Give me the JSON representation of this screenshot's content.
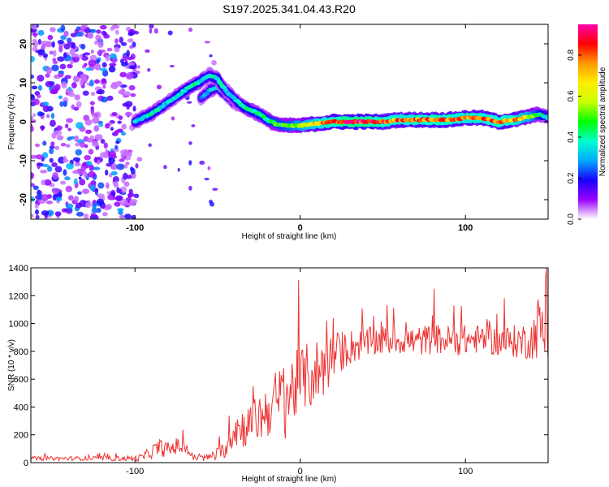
{
  "title": "S197.2025.341.04.43.R20",
  "chart_data": [
    {
      "type": "heatmap",
      "title": "S197.2025.341.04.43.R20",
      "xlabel": "Height of straight line (km)",
      "ylabel": "Frequency (Hz)",
      "xlim": [
        -163,
        150
      ],
      "ylim": [
        -25,
        25
      ],
      "x_ticks": [
        {
          "v": -100,
          "label": "-100"
        },
        {
          "v": 0,
          "label": "0"
        },
        {
          "v": 100,
          "label": "100"
        }
      ],
      "y_ticks": [
        {
          "v": 20,
          "label": "20"
        },
        {
          "v": 10,
          "label": "10"
        },
        {
          "v": 0,
          "label": "0"
        },
        {
          "v": -10,
          "label": "-10"
        },
        {
          "v": -20,
          "label": "-20"
        }
      ],
      "colorbar": {
        "label": "Normalized spectral amplitude",
        "range": [
          0,
          0.95
        ],
        "ticks": [
          {
            "v": 0.0,
            "label": "0.0"
          },
          {
            "v": 0.2,
            "label": "0.2"
          },
          {
            "v": 0.4,
            "label": "0.4"
          },
          {
            "v": 0.6,
            "label": "0.6"
          },
          {
            "v": 0.8,
            "label": "0.8"
          }
        ],
        "colors": [
          "#ffffff",
          "#9b00ff",
          "#1a00ff",
          "#00aaff",
          "#00ffcc",
          "#00ff00",
          "#c8ff00",
          "#ffee00",
          "#ff9900",
          "#ff0000",
          "#ff00aa"
        ]
      },
      "ridge": {
        "x": [
          -100,
          -90,
          -80,
          -70,
          -62,
          -55,
          -50,
          -45,
          -40,
          -35,
          -30,
          -25,
          -20,
          -15,
          -10,
          -5,
          0,
          10,
          20,
          30,
          40,
          50,
          60,
          70,
          80,
          90,
          100,
          110,
          120,
          130,
          140,
          145,
          150
        ],
        "freq": [
          0,
          2,
          5,
          8,
          10,
          12,
          11,
          8,
          6,
          4,
          3,
          2,
          0.5,
          -0.5,
          -1,
          -1,
          -1,
          -0.5,
          0,
          0,
          0,
          0,
          0.5,
          0.5,
          0.5,
          0.5,
          1,
          1,
          0,
          0.5,
          1.5,
          2,
          1
        ],
        "amplitude": [
          0.35,
          0.4,
          0.35,
          0.4,
          0.4,
          0.35,
          0.4,
          0.35,
          0.35,
          0.4,
          0.45,
          0.45,
          0.45,
          0.5,
          0.5,
          0.55,
          0.6,
          0.75,
          0.85,
          0.9,
          0.9,
          0.85,
          0.8,
          0.8,
          0.85,
          0.85,
          0.8,
          0.8,
          0.85,
          0.8,
          0.6,
          0.45,
          0.35
        ]
      },
      "secondary_ridge": {
        "x": [
          -60,
          -55,
          -50,
          -45,
          -40,
          -35
        ],
        "freq": [
          6,
          8,
          9,
          7,
          5,
          4
        ],
        "amplitude": [
          0.3,
          0.35,
          0.35,
          0.35,
          0.3,
          0.3
        ]
      },
      "noise_region": {
        "x_range": [
          -163,
          -100
        ],
        "freq_range": [
          -25,
          25
        ],
        "amplitude": [
          0.05,
          0.3
        ]
      }
    },
    {
      "type": "line",
      "xlabel": "Height of straight line (km)",
      "ylabel": "SNR (10 * v/v)",
      "xlim": [
        -163,
        150
      ],
      "ylim": [
        0,
        1400
      ],
      "color": "#ee3333",
      "x_ticks": [
        {
          "v": -100,
          "label": "-100"
        },
        {
          "v": 0,
          "label": "0"
        },
        {
          "v": 100,
          "label": "100"
        }
      ],
      "y_ticks": [
        {
          "v": 0,
          "label": "0"
        },
        {
          "v": 200,
          "label": "200"
        },
        {
          "v": 400,
          "label": "400"
        },
        {
          "v": 600,
          "label": "600"
        },
        {
          "v": 800,
          "label": "800"
        },
        {
          "v": 1000,
          "label": "1000"
        },
        {
          "v": 1200,
          "label": "1200"
        },
        {
          "v": 1400,
          "label": "1400"
        }
      ],
      "trend": {
        "x": [
          -163,
          -130,
          -100,
          -95,
          -90,
          -85,
          -80,
          -75,
          -70,
          -65,
          -60,
          -55,
          -50,
          -45,
          -40,
          -35,
          -30,
          -25,
          -20,
          -15,
          -10,
          -5,
          0,
          5,
          10,
          15,
          20,
          25,
          30,
          40,
          50,
          60,
          70,
          80,
          90,
          100,
          110,
          120,
          130,
          140,
          145,
          150
        ],
        "y": [
          30,
          30,
          30,
          40,
          80,
          110,
          90,
          120,
          110,
          40,
          30,
          40,
          60,
          100,
          250,
          250,
          280,
          320,
          380,
          420,
          450,
          520,
          600,
          620,
          650,
          700,
          750,
          800,
          830,
          860,
          880,
          880,
          870,
          890,
          880,
          880,
          890,
          870,
          870,
          880,
          1000,
          860
        ],
        "noise_amplitude": [
          15,
          15,
          20,
          30,
          50,
          60,
          60,
          60,
          50,
          25,
          20,
          30,
          50,
          60,
          150,
          150,
          150,
          180,
          200,
          250,
          300,
          280,
          220,
          250,
          250,
          220,
          180,
          150,
          130,
          110,
          110,
          100,
          110,
          110,
          110,
          110,
          100,
          110,
          120,
          140,
          250,
          150
        ]
      }
    }
  ]
}
